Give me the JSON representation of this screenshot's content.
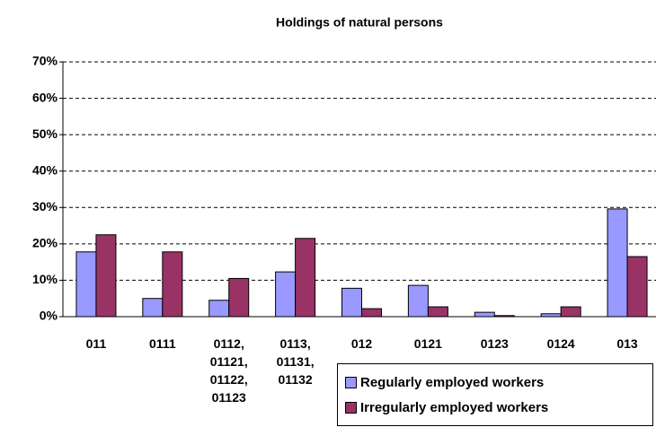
{
  "chart_data": {
    "type": "bar",
    "title": "Holdings of natural persons",
    "categories": [
      "011",
      "0111",
      "0112, 01121, 01122, 01123",
      "0113, 01131, 01132",
      "012",
      "0121",
      "0123",
      "0124",
      "013"
    ],
    "series": [
      {
        "name": "Regularly employed workers",
        "color": "#9999ff",
        "values": [
          17.8,
          5,
          4.5,
          12.3,
          7.8,
          8.6,
          1.2,
          0.8,
          29.6
        ]
      },
      {
        "name": "Irregularly employed workers",
        "color": "#993366",
        "values": [
          22.5,
          17.8,
          10.5,
          21.5,
          2.2,
          2.7,
          0.3,
          2.7,
          16.5
        ]
      }
    ],
    "ylim": [
      0,
      70
    ],
    "yticks": [
      {
        "value": 0,
        "label": "0%"
      },
      {
        "value": 10,
        "label": "10%"
      },
      {
        "value": 20,
        "label": "20%"
      },
      {
        "value": 30,
        "label": "30%"
      },
      {
        "value": 40,
        "label": "40%"
      },
      {
        "value": 50,
        "label": "50%"
      },
      {
        "value": 60,
        "label": "60%"
      },
      {
        "value": 70,
        "label": "70%"
      }
    ],
    "grid": true
  }
}
